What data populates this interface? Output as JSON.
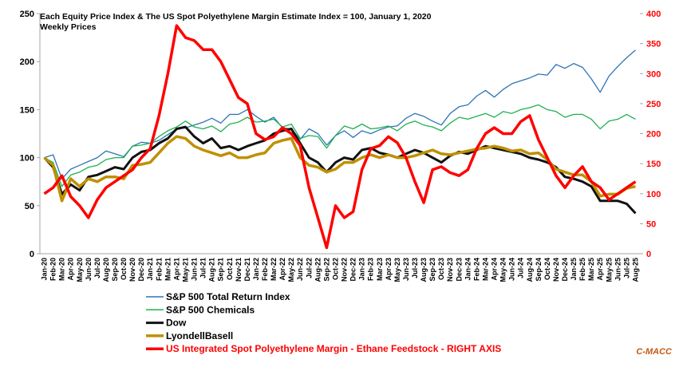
{
  "chart_data": {
    "type": "line",
    "title": "Each Equity Price Index & The US Spot Polyethylene Margin Estimate Index = 100, January 1, 2020",
    "subtitle": "Weekly Prices",
    "source": "C-MACC",
    "categories": [
      "Jan-20",
      "Feb-20",
      "Mar-20",
      "Apr-20",
      "May-20",
      "Jun-20",
      "Jul-20",
      "Aug-20",
      "Sep-20",
      "Oct-20",
      "Nov-20",
      "Dec-20",
      "Jan-21",
      "Feb-21",
      "Mar-21",
      "Apr-21",
      "May-21",
      "Jun-21",
      "Jul-21",
      "Aug-21",
      "Sep-21",
      "Oct-21",
      "Nov-21",
      "Dec-21",
      "Jan-22",
      "Feb-22",
      "Mar-22",
      "Apr-22",
      "May-22",
      "Jun-22",
      "Jul-22",
      "Aug-22",
      "Sep-22",
      "Oct-22",
      "Nov-22",
      "Dec-22",
      "Jan-23",
      "Feb-23",
      "Mar-23",
      "Apr-23",
      "May-23",
      "Jun-23",
      "Jul-23",
      "Aug-23",
      "Sep-23",
      "Oct-23",
      "Nov-23",
      "Dec-23",
      "Jan-24",
      "Feb-24",
      "Mar-24",
      "Apr-24",
      "May-24",
      "Jun-24",
      "Jul-24",
      "Aug-24",
      "Sep-24",
      "Oct-24",
      "Nov-24",
      "Dec-24",
      "Jan-25",
      "Feb-25",
      "Mar-25",
      "Apr-25",
      "May-25",
      "Jun-25",
      "Jul-25",
      "Aug-25"
    ],
    "ylim": [
      0,
      250
    ],
    "yticks": [
      0,
      50,
      100,
      150,
      200,
      250
    ],
    "y2lim": [
      0,
      400
    ],
    "y2ticks": [
      0,
      50,
      100,
      150,
      200,
      250,
      300,
      350,
      400
    ],
    "series": [
      {
        "name": "S&P 500 Total Return Index",
        "color": "#2e75b6",
        "values": [
          100,
          103,
          78,
          88,
          92,
          96,
          100,
          107,
          104,
          101,
          112,
          116,
          115,
          118,
          124,
          130,
          131,
          134,
          137,
          141,
          136,
          145,
          145,
          150,
          143,
          137,
          142,
          131,
          130,
          119,
          130,
          125,
          113,
          123,
          128,
          121,
          128,
          125,
          129,
          132,
          133,
          141,
          146,
          143,
          138,
          134,
          146,
          153,
          155,
          164,
          170,
          163,
          171,
          177,
          180,
          183,
          187,
          186,
          197,
          193,
          198,
          194,
          182,
          168,
          185,
          195,
          204,
          212
        ]
      },
      {
        "name": "S&P 500 Chemicals",
        "color": "#1fb050",
        "values": [
          100,
          95,
          70,
          82,
          85,
          90,
          92,
          98,
          100,
          100,
          112,
          113,
          115,
          122,
          128,
          132,
          138,
          132,
          130,
          133,
          127,
          135,
          137,
          142,
          137,
          138,
          140,
          132,
          135,
          120,
          123,
          122,
          110,
          123,
          133,
          130,
          135,
          130,
          131,
          133,
          128,
          135,
          138,
          134,
          132,
          128,
          136,
          142,
          140,
          143,
          146,
          142,
          148,
          146,
          150,
          152,
          155,
          150,
          148,
          142,
          145,
          145,
          140,
          130,
          138,
          140,
          145,
          140
        ]
      },
      {
        "name": "Dow",
        "color": "#111111",
        "values": [
          100,
          90,
          62,
          72,
          66,
          80,
          82,
          86,
          90,
          88,
          100,
          106,
          108,
          115,
          120,
          130,
          132,
          122,
          115,
          120,
          110,
          112,
          108,
          112,
          115,
          118,
          125,
          128,
          130,
          115,
          100,
          95,
          85,
          95,
          100,
          98,
          108,
          110,
          105,
          103,
          100,
          104,
          108,
          105,
          100,
          95,
          102,
          106,
          104,
          108,
          112,
          110,
          108,
          106,
          104,
          100,
          98,
          95,
          90,
          80,
          78,
          75,
          70,
          55,
          55,
          55,
          52,
          42
        ]
      },
      {
        "name": "LyondellBasell",
        "color": "#bf9000",
        "values": [
          100,
          92,
          55,
          78,
          70,
          78,
          75,
          80,
          80,
          78,
          92,
          93,
          95,
          105,
          115,
          122,
          120,
          112,
          108,
          105,
          102,
          105,
          100,
          100,
          103,
          105,
          115,
          118,
          120,
          100,
          92,
          90,
          85,
          88,
          95,
          95,
          100,
          103,
          100,
          103,
          100,
          100,
          102,
          105,
          108,
          104,
          103,
          105,
          107,
          109,
          110,
          112,
          110,
          107,
          108,
          104,
          105,
          98,
          88,
          85,
          82,
          82,
          75,
          60,
          62,
          62,
          68,
          70
        ]
      },
      {
        "name": "US Integrated Spot Polyethylene Margin - Ethane Feedstock - RIGHT AXIS",
        "color": "#ff0000",
        "axis": "y2",
        "values": [
          100,
          110,
          130,
          95,
          80,
          60,
          90,
          110,
          120,
          130,
          140,
          160,
          175,
          230,
          300,
          380,
          360,
          355,
          340,
          340,
          320,
          290,
          260,
          250,
          200,
          190,
          195,
          210,
          200,
          180,
          110,
          60,
          10,
          80,
          60,
          70,
          140,
          175,
          180,
          195,
          185,
          160,
          120,
          85,
          140,
          145,
          135,
          130,
          140,
          175,
          200,
          210,
          200,
          200,
          220,
          230,
          190,
          160,
          130,
          110,
          130,
          145,
          120,
          110,
          90,
          100,
          110,
          120
        ]
      }
    ]
  }
}
